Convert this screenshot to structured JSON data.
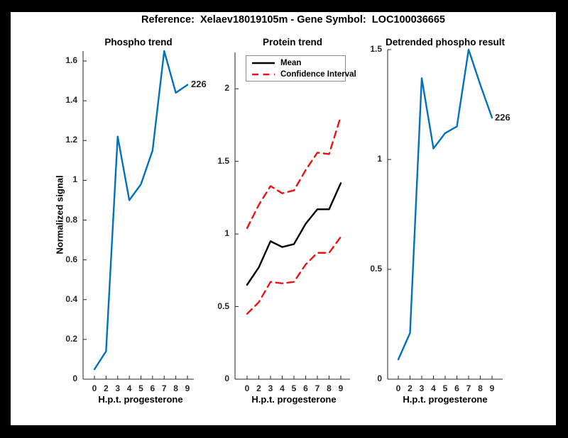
{
  "figure_title": "Reference:  Xelaev18019105m - Gene Symbol:  LOC100036665",
  "colors": {
    "line_blue": "#0072BD",
    "ci_red": "#EE1111",
    "mean_black": "#000000",
    "axis": "#262626",
    "figure_bg": "#ffffff",
    "frame_bg": "#000000"
  },
  "x_tick_labels": [
    "0",
    "2",
    "3",
    "4",
    "5",
    "6",
    "7",
    "8",
    "9"
  ],
  "chart_data": [
    {
      "type": "line",
      "title": "Phospho trend",
      "xlabel": "H.p.t. progesterone",
      "ylabel": "Normalized signal",
      "x": [
        0,
        2,
        3,
        4,
        5,
        6,
        7,
        8,
        9
      ],
      "x_tick_labels": [
        "0",
        "2",
        "3",
        "4",
        "5",
        "6",
        "7",
        "8",
        "9"
      ],
      "ylim": [
        0,
        1.65
      ],
      "ytick_values": [
        0,
        0.2,
        0.4,
        0.6,
        0.8,
        1,
        1.2,
        1.4,
        1.6
      ],
      "ytick_labels": [
        "0",
        "0.2",
        "0.4",
        "0.6",
        "0.8",
        "1",
        "1.2",
        "1.4",
        "1.6"
      ],
      "grid": false,
      "series": [
        {
          "name": "phospho",
          "color_key": "line_blue",
          "style": "solid",
          "values": [
            0.05,
            0.14,
            1.22,
            0.9,
            0.98,
            1.15,
            1.65,
            1.44,
            1.48
          ]
        }
      ],
      "annotation": {
        "text": "226",
        "at_series": "phospho",
        "at_x": 9
      }
    },
    {
      "type": "line",
      "title": "Protein trend",
      "xlabel": "H.p.t. progesterone",
      "ylabel": "",
      "x": [
        0,
        2,
        3,
        4,
        5,
        6,
        7,
        8,
        9
      ],
      "x_tick_labels": [
        "0",
        "2",
        "3",
        "4",
        "5",
        "6",
        "7",
        "8",
        "9"
      ],
      "ylim": [
        0,
        2.25
      ],
      "ytick_values": [
        0,
        0.5,
        1,
        1.5,
        2
      ],
      "ytick_labels": [
        "0",
        "0.5",
        "1",
        "1.5",
        "2"
      ],
      "grid": false,
      "legend": {
        "position": "upper-left",
        "entries": [
          {
            "label": "Mean",
            "color_key": "mean_black",
            "style": "solid"
          },
          {
            "label": "Confidence Interval",
            "color_key": "ci_red",
            "style": "dashed"
          }
        ]
      },
      "series": [
        {
          "name": "ci-upper",
          "color_key": "ci_red",
          "style": "dashed",
          "values": [
            1.04,
            1.2,
            1.33,
            1.28,
            1.3,
            1.44,
            1.56,
            1.55,
            1.81
          ]
        },
        {
          "name": "mean",
          "color_key": "mean_black",
          "style": "solid",
          "values": [
            0.65,
            0.77,
            0.95,
            0.91,
            0.93,
            1.07,
            1.17,
            1.17,
            1.35
          ]
        },
        {
          "name": "ci-lower",
          "color_key": "ci_red",
          "style": "dashed",
          "values": [
            0.45,
            0.53,
            0.67,
            0.66,
            0.67,
            0.79,
            0.87,
            0.87,
            0.98
          ]
        }
      ]
    },
    {
      "type": "line",
      "title": "Detrended phospho result",
      "xlabel": "H.p.t. progesterone",
      "ylabel": "",
      "x": [
        0,
        2,
        3,
        4,
        5,
        6,
        7,
        8,
        9
      ],
      "x_tick_labels": [
        "0",
        "2",
        "3",
        "4",
        "5",
        "6",
        "7",
        "8",
        "9"
      ],
      "ylim": [
        0,
        1.5
      ],
      "ytick_values": [
        0,
        0.5,
        1,
        1.5
      ],
      "ytick_labels": [
        "0",
        "0.5",
        "1",
        "1.5"
      ],
      "grid": false,
      "series": [
        {
          "name": "detrended",
          "color_key": "line_blue",
          "style": "solid",
          "values": [
            0.09,
            0.21,
            1.37,
            1.05,
            1.12,
            1.15,
            1.5,
            1.34,
            1.19
          ]
        }
      ],
      "annotation": {
        "text": "226",
        "at_series": "detrended",
        "at_x": 9
      }
    }
  ],
  "legend": {
    "mean_label": "Mean",
    "ci_label": "Confidence Interval"
  }
}
